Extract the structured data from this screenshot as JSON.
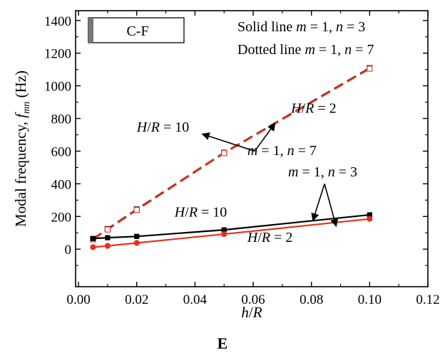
{
  "chart_data": {
    "type": "line",
    "xlabel_parts": [
      "h",
      "/",
      "R"
    ],
    "ylabel": "Modal frequency, f",
    "ylabel_sub": "mn",
    "ylabel_unit": " (Hz)",
    "xlim": [
      -0.001,
      0.12
    ],
    "ylim": [
      -230,
      1460
    ],
    "x_ticks": [
      "0.00",
      "0.02",
      "0.04",
      "0.06",
      "0.08",
      "0.10",
      "0.12"
    ],
    "x_tick_values": [
      0.0,
      0.02,
      0.04,
      0.06,
      0.08,
      0.1,
      0.12
    ],
    "y_ticks": [
      "0",
      "200",
      "400",
      "600",
      "800",
      "1000",
      "1200",
      "1400"
    ],
    "y_tick_values": [
      0,
      200,
      400,
      600,
      800,
      1000,
      1200,
      1400
    ],
    "grid": false,
    "boundary_label": "C-F",
    "legend_lines": [
      {
        "prefix": "Solid line ",
        "m": "m",
        "mval": " = 1, ",
        "n": "n",
        "nval": " = 3"
      },
      {
        "prefix": "Dotted line ",
        "m": "m",
        "mval": " = 1, ",
        "n": "n",
        "nval": " = 7"
      }
    ],
    "series": [
      {
        "key": "hr10_n7",
        "x": [
          0.005,
          0.01,
          0.02,
          0.05,
          0.1
        ],
        "y": [
          62,
          123,
          243,
          590,
          1108
        ],
        "color": "#000000",
        "style": "dashed",
        "marker": "open-square"
      },
      {
        "key": "hr2_n7",
        "x": [
          0.005,
          0.01,
          0.02,
          0.05,
          0.1
        ],
        "y": [
          60,
          120,
          240,
          588,
          1105
        ],
        "color": "#e8311e",
        "style": "dashed",
        "marker": "open-square"
      },
      {
        "key": "hr10_n3",
        "x": [
          0.005,
          0.01,
          0.02,
          0.05,
          0.1
        ],
        "y": [
          65,
          70,
          78,
          118,
          210
        ],
        "color": "#000000",
        "style": "solid",
        "marker": "filled-square"
      },
      {
        "key": "hr2_n3",
        "x": [
          0.005,
          0.01,
          0.02,
          0.05,
          0.1
        ],
        "y": [
          12,
          20,
          38,
          92,
          185
        ],
        "color": "#e8311e",
        "style": "solid",
        "marker": "filled-circle"
      }
    ],
    "annotations": [
      {
        "text_parts": [
          "H",
          "/",
          "R",
          " = 10"
        ],
        "x": 0.02,
        "y": 720
      },
      {
        "text_parts": [
          "H",
          "/",
          "R",
          " = 2"
        ],
        "x": 0.073,
        "y": 835
      },
      {
        "text_parts": [
          "m",
          " = 1, ",
          "n",
          " = 7"
        ],
        "x": 0.058,
        "y": 575
      },
      {
        "text_parts": [
          "m",
          " = 1, ",
          "n",
          " = 3"
        ],
        "x": 0.072,
        "y": 445
      },
      {
        "text_parts": [
          "H",
          "/",
          "R",
          " = 10"
        ],
        "x": 0.033,
        "y": 198
      },
      {
        "text_parts": [
          "H",
          "/",
          "R",
          " = 2"
        ],
        "x": 0.058,
        "y": 45
      }
    ],
    "arrows": [
      {
        "from": [
          0.0605,
          600
        ],
        "to": [
          0.0425,
          705
        ]
      },
      {
        "from": [
          0.0605,
          600
        ],
        "to": [
          0.0675,
          770
        ]
      },
      {
        "from": [
          0.0845,
          400
        ],
        "to": [
          0.0805,
          175
        ]
      },
      {
        "from": [
          0.0845,
          400
        ],
        "to": [
          0.0885,
          140
        ]
      }
    ]
  },
  "figure_label": "E"
}
